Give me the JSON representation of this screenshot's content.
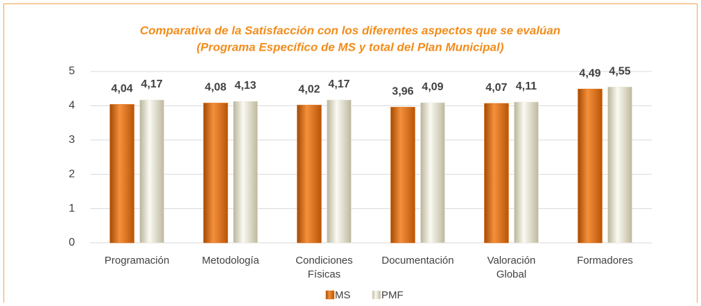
{
  "chart_data": {
    "type": "bar",
    "title": [
      "Comparativa de la Satisfacción con los diferentes aspectos que se evalúan",
      "(Programa Específico de MS y total del Plan Municipal)"
    ],
    "categories": [
      "Programación",
      "Metodología",
      "Condiciones Físicas",
      "Documentación",
      "Valoración Global",
      "Formadores"
    ],
    "series": [
      {
        "name": "MS",
        "color": "#e46c0a",
        "values": [
          4.04,
          4.08,
          4.02,
          3.96,
          4.07,
          4.49
        ],
        "value_labels": [
          "4,04",
          "4,08",
          "4,02",
          "3,96",
          "4,07",
          "4,49"
        ]
      },
      {
        "name": "PMF",
        "color": "#eeece1",
        "values": [
          4.17,
          4.13,
          4.17,
          4.09,
          4.11,
          4.55
        ],
        "value_labels": [
          "4,17",
          "4,13",
          "4,17",
          "4,09",
          "4,11",
          "4,55"
        ]
      }
    ],
    "ylim": [
      0,
      5
    ],
    "yticks": [
      0,
      1,
      2,
      3,
      4,
      5
    ],
    "grid": true,
    "legend": "bottom"
  }
}
